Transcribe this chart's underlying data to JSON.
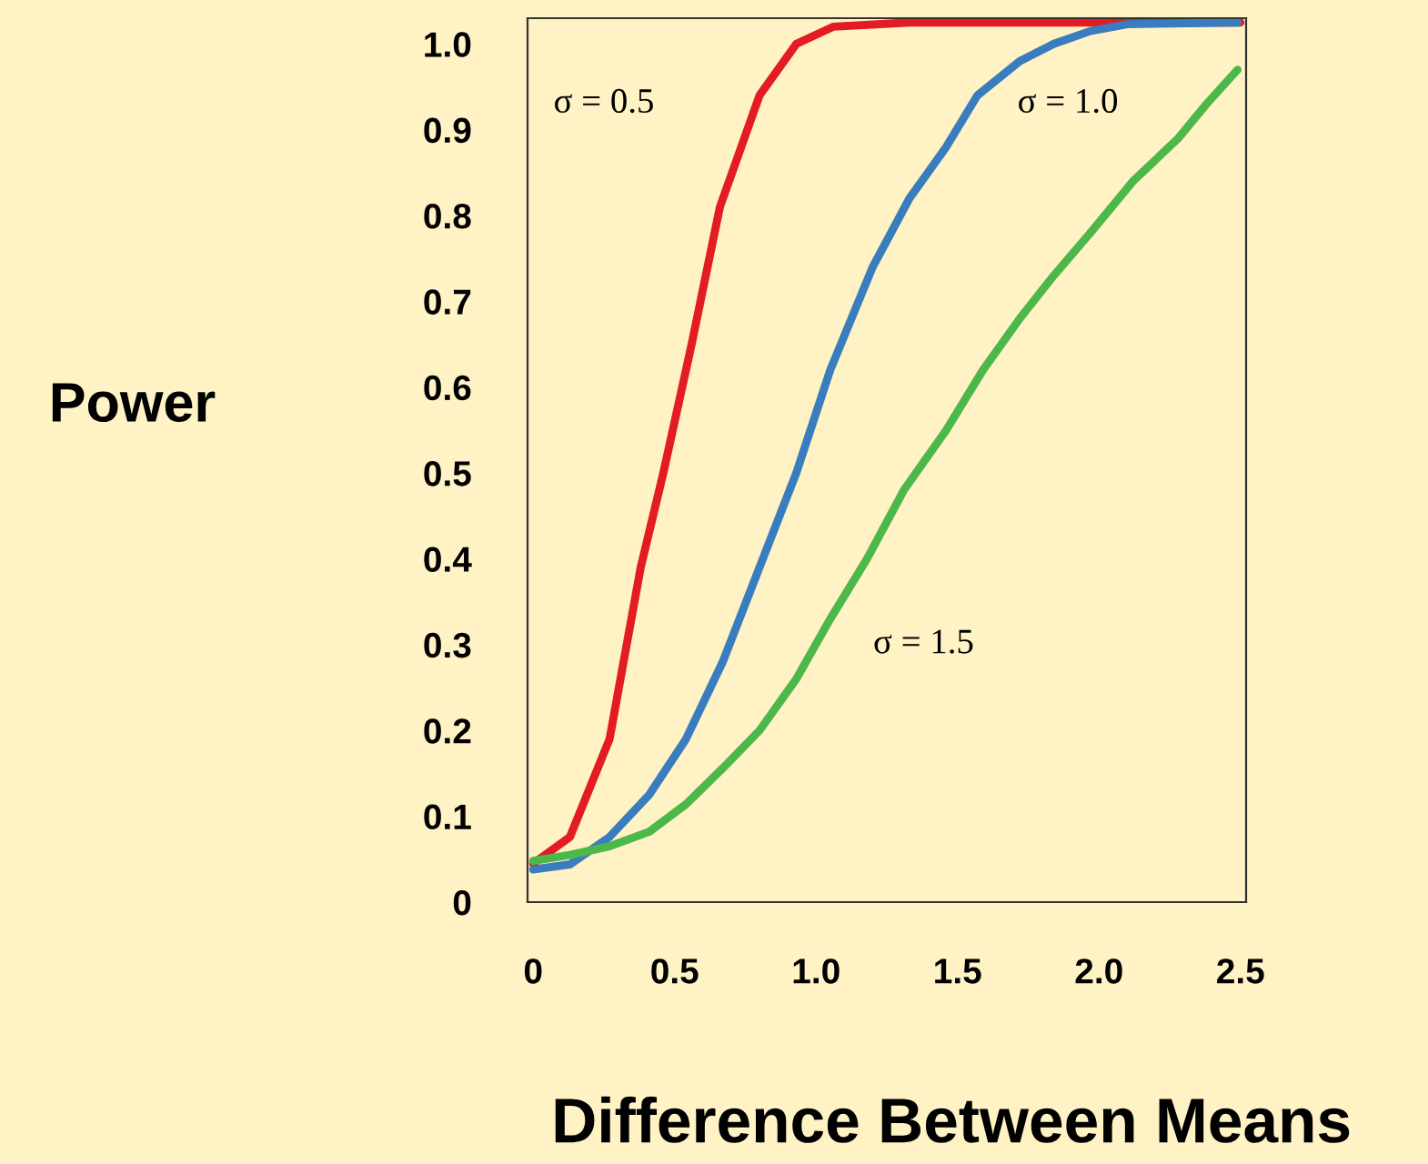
{
  "chart_data": {
    "type": "line",
    "xlabel": "Difference Between Means",
    "ylabel": "Power",
    "xlim": [
      -0.02,
      2.52
    ],
    "xticks": [
      0,
      0.5,
      {
        "value": 1.0,
        "label": "1.0"
      },
      1.5,
      {
        "value": 2.0,
        "label": "2.0"
      },
      2.5
    ],
    "ylim": [
      0,
      1.03
    ],
    "yticks": [
      0,
      0.1,
      0.2,
      0.3,
      0.4,
      0.5,
      0.6,
      0.7,
      0.8,
      0.9,
      {
        "value": 1.0,
        "label": "1.0"
      }
    ],
    "grid": false,
    "legend": false,
    "marker": "none",
    "line_style": "solid",
    "series": [
      {
        "name": "σ = 0.5",
        "color": "#e31b23",
        "x": [
          0,
          0.13,
          0.27,
          0.38,
          0.46,
          0.56,
          0.66,
          0.8,
          0.93,
          1.06,
          1.33,
          2.5
        ],
        "values": [
          0.045,
          0.076,
          0.19,
          0.39,
          0.5,
          0.65,
          0.81,
          0.94,
          1.0,
          1.02,
          1.025,
          1.025
        ]
      },
      {
        "name": "σ = 1.0",
        "color": "#3a7dbf",
        "x": [
          0,
          0.13,
          0.27,
          0.41,
          0.54,
          0.67,
          0.8,
          0.93,
          1.05,
          1.2,
          1.33,
          1.46,
          1.57,
          1.72,
          1.84,
          1.97,
          2.1,
          2.49
        ],
        "values": [
          0.038,
          0.044,
          0.076,
          0.125,
          0.19,
          0.28,
          0.39,
          0.5,
          0.62,
          0.74,
          0.82,
          0.88,
          0.94,
          0.98,
          1.0,
          1.015,
          1.023,
          1.025
        ]
      },
      {
        "name": "σ = 1.5",
        "color": "#4db84a",
        "x": [
          0,
          0.13,
          0.27,
          0.41,
          0.54,
          0.67,
          0.8,
          0.93,
          1.05,
          1.18,
          1.31,
          1.46,
          1.59,
          1.72,
          1.84,
          1.97,
          2.12,
          2.28,
          2.38,
          2.49
        ],
        "values": [
          0.048,
          0.055,
          0.065,
          0.082,
          0.114,
          0.156,
          0.2,
          0.26,
          0.33,
          0.4,
          0.48,
          0.55,
          0.62,
          0.68,
          0.73,
          0.78,
          0.84,
          0.89,
          0.93,
          0.97
        ]
      }
    ]
  }
}
